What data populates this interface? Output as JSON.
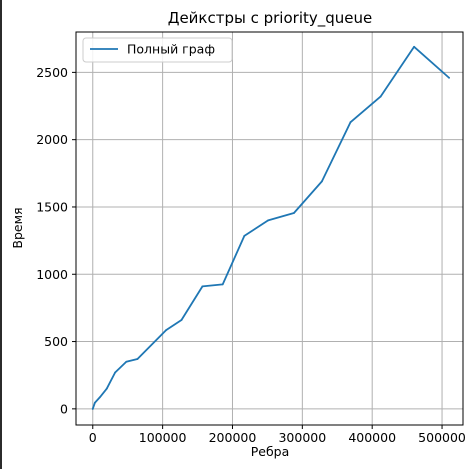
{
  "chart_data": {
    "type": "line",
    "title": "Дейкстры с priority_queue",
    "xlabel": "Ребра",
    "ylabel": "Время",
    "xlim": [
      -24000,
      530000
    ],
    "ylim": [
      -120,
      2800
    ],
    "xticks": [
      0,
      100000,
      200000,
      300000,
      400000,
      500000
    ],
    "xtick_labels": [
      "0",
      "100000",
      "200000",
      "300000",
      "400000",
      "500000"
    ],
    "yticks": [
      0,
      500,
      1000,
      1500,
      2000,
      2500
    ],
    "ytick_labels": [
      "0",
      "500",
      "1000",
      "1500",
      "2000",
      "2500"
    ],
    "grid": true,
    "legend_position": "upper-left",
    "series": [
      {
        "name": "Полный граф",
        "color": "#1f77b4",
        "x": [
          0,
          3000,
          10000,
          20000,
          32000,
          48000,
          64000,
          105000,
          127000,
          157000,
          186000,
          217000,
          251000,
          288000,
          328000,
          369000,
          412000,
          460000,
          510000
        ],
        "y": [
          0,
          45,
          85,
          150,
          270,
          350,
          370,
          585,
          660,
          910,
          925,
          1285,
          1400,
          1455,
          1690,
          2130,
          2320,
          2690,
          2460
        ]
      }
    ]
  }
}
